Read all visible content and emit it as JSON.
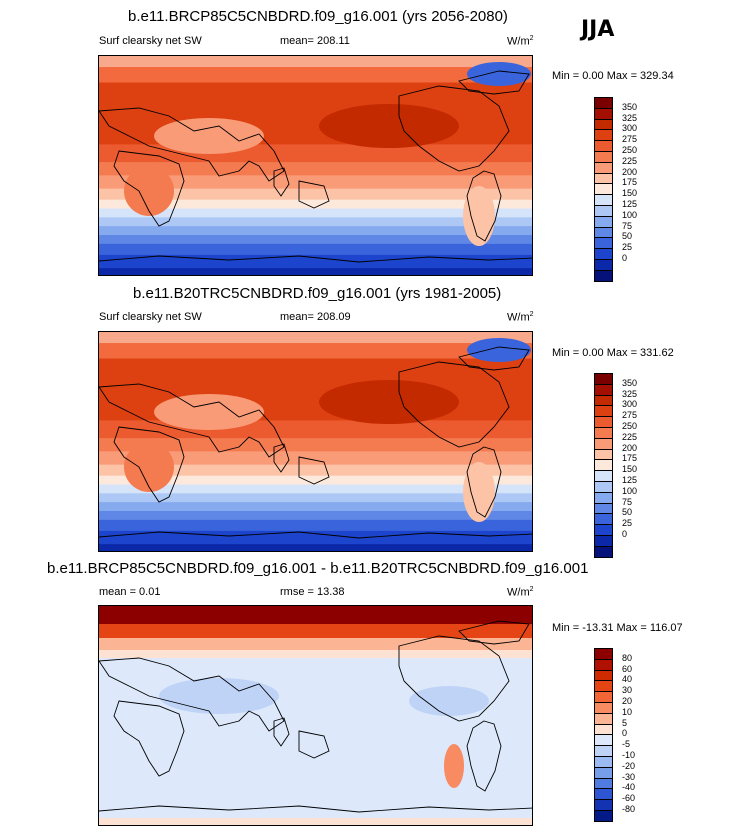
{
  "season": "JJA",
  "units_prefix": "W/m",
  "units_exp": "2",
  "panels": [
    {
      "title": "b.e11.BRCP85C5CNBDRD.f09_g16.001 (yrs 2056-2080)",
      "left_label": "Surf clearsky net SW",
      "center_label": "mean= 208.11",
      "minmax": "Min =   0.00 Max = 329.34",
      "kind": "abs",
      "colorbar": {
        "labels": [
          "350",
          "325",
          "300",
          "275",
          "250",
          "225",
          "200",
          "175",
          "150",
          "125",
          "100",
          "75",
          "50",
          "25",
          "0"
        ],
        "colors": [
          "#7a0000",
          "#a30f00",
          "#c42a00",
          "#dd4011",
          "#ec5a2f",
          "#f47a50",
          "#f99b77",
          "#fcc3a6",
          "#fde9dc",
          "#d6e4fa",
          "#adc8f5",
          "#86aaee",
          "#5f88e6",
          "#3a64dc",
          "#1d44cc",
          "#0b28a8",
          "#04127a"
        ]
      }
    },
    {
      "title": "b.e11.B20TRC5CNBDRD.f09_g16.001 (yrs 1981-2005)",
      "left_label": "Surf clearsky net SW",
      "center_label": "mean= 208.09",
      "minmax": "Min =   0.00 Max = 331.62",
      "kind": "abs",
      "colorbar": {
        "labels": [
          "350",
          "325",
          "300",
          "275",
          "250",
          "225",
          "200",
          "175",
          "150",
          "125",
          "100",
          "75",
          "50",
          "25",
          "0"
        ],
        "colors": [
          "#7a0000",
          "#a30f00",
          "#c42a00",
          "#dd4011",
          "#ec5a2f",
          "#f47a50",
          "#f99b77",
          "#fcc3a6",
          "#fde9dc",
          "#d6e4fa",
          "#adc8f5",
          "#86aaee",
          "#5f88e6",
          "#3a64dc",
          "#1d44cc",
          "#0b28a8",
          "#04127a"
        ]
      }
    },
    {
      "title": "b.e11.BRCP85C5CNBDRD.f09_g16.001 - b.e11.B20TRC5CNBDRD.f09_g16.001",
      "left_label": "mean =   0.01",
      "center_label": "rmse =  13.38",
      "minmax": "Min = -13.31 Max = 116.07",
      "kind": "diff",
      "colorbar": {
        "labels": [
          "80",
          "60",
          "40",
          "30",
          "20",
          "10",
          "5",
          "0",
          "-5",
          "-10",
          "-20",
          "-30",
          "-40",
          "-60",
          "-80"
        ],
        "colors": [
          "#8c0000",
          "#b01000",
          "#cf2b00",
          "#e54514",
          "#f26535",
          "#f88b61",
          "#fbb594",
          "#fde1d2",
          "#dde9fb",
          "#bfd3f7",
          "#9bbbf2",
          "#769ee9",
          "#507cdf",
          "#2e56d2",
          "#1433b3",
          "#041a86"
        ]
      }
    }
  ]
}
